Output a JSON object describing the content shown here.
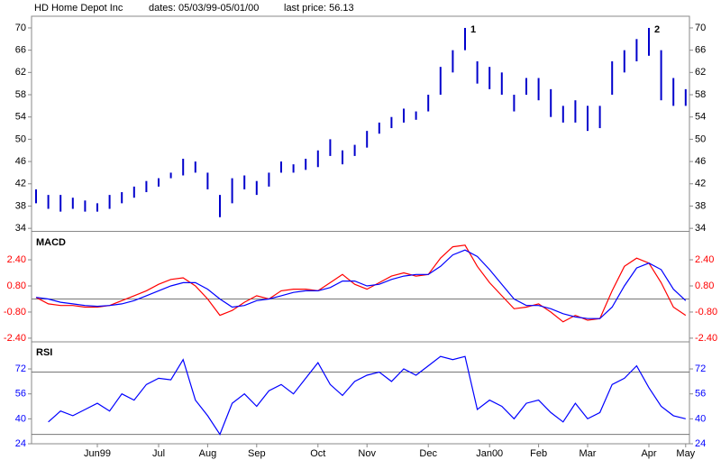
{
  "header": {
    "symbol": "HD Home Depot Inc",
    "dates": "dates: 05/03/99-05/01/00",
    "last": "last price: 56.13"
  },
  "chart_data": [
    {
      "type": "ohlc",
      "color": "#0000cc",
      "high": [
        41,
        40,
        40,
        39.5,
        39,
        38.5,
        40,
        40.5,
        41.5,
        42.5,
        43,
        44,
        46.5,
        46,
        44,
        40,
        43,
        43.5,
        42.5,
        44,
        46,
        45.5,
        46.5,
        48,
        50,
        48,
        49,
        51.5,
        53,
        54,
        55.5,
        55,
        58,
        63,
        66,
        70,
        64,
        63,
        62,
        58,
        61,
        61,
        59,
        56,
        57,
        56,
        56,
        64,
        66,
        68,
        70,
        66,
        61,
        59
      ],
      "low": [
        38.5,
        37.5,
        37,
        37.5,
        37,
        37,
        37.5,
        38.5,
        39.5,
        40.5,
        41.5,
        43,
        43.5,
        44,
        41,
        36,
        38.5,
        41,
        40,
        41.5,
        44,
        44,
        44.5,
        45,
        47,
        45.5,
        47,
        48.5,
        51,
        52,
        53,
        53.5,
        55,
        58,
        62,
        66,
        60,
        59,
        58,
        55,
        58,
        57,
        54,
        53,
        53,
        51.5,
        52,
        58,
        62,
        64,
        65,
        57,
        56,
        56
      ],
      "annotations": [
        {
          "text": "1",
          "at": 35
        },
        {
          "text": "2",
          "at": 50
        }
      ],
      "ylim": [
        33.7,
        72.1
      ],
      "yticks": [
        34,
        38,
        42,
        46,
        50,
        54,
        58,
        62,
        66,
        70
      ]
    },
    {
      "type": "line",
      "title": "MACD",
      "series": [
        {
          "color": "#ff0000",
          "values": [
            0.1,
            -0.3,
            -0.4,
            -0.4,
            -0.5,
            -0.5,
            -0.4,
            -0.1,
            0.2,
            0.5,
            0.9,
            1.2,
            1.3,
            0.8,
            0.0,
            -1.0,
            -0.7,
            -0.2,
            0.2,
            0.0,
            0.5,
            0.6,
            0.6,
            0.5,
            1.0,
            1.5,
            0.9,
            0.6,
            1.0,
            1.4,
            1.6,
            1.4,
            1.5,
            2.5,
            3.2,
            3.3,
            2.0,
            1.0,
            0.2,
            -0.6,
            -0.5,
            -0.3,
            -0.8,
            -1.4,
            -1.0,
            -1.3,
            -1.2,
            0.5,
            2.0,
            2.5,
            2.2,
            1.0,
            -0.5,
            -1.0
          ]
        },
        {
          "color": "#0000ff",
          "values": [
            0.1,
            0,
            -0.2,
            -0.3,
            -0.4,
            -0.45,
            -0.4,
            -0.3,
            -0.1,
            0.2,
            0.5,
            0.8,
            1.0,
            1.0,
            0.6,
            0.0,
            -0.5,
            -0.4,
            -0.1,
            0.0,
            0.2,
            0.4,
            0.5,
            0.5,
            0.7,
            1.1,
            1.1,
            0.8,
            0.9,
            1.2,
            1.4,
            1.5,
            1.5,
            2.0,
            2.7,
            3.0,
            2.6,
            1.8,
            0.9,
            0.0,
            -0.4,
            -0.4,
            -0.6,
            -0.9,
            -1.1,
            -1.2,
            -1.2,
            -0.5,
            0.8,
            1.9,
            2.2,
            1.8,
            0.6,
            -0.1
          ]
        }
      ],
      "hlines": [
        0
      ],
      "tick_color": "#ff0000",
      "ylim": [
        -2.57,
        4.06
      ],
      "yticks": [
        {
          "value": -2.4,
          "label": "-2.40"
        },
        {
          "value": -0.8,
          "label": "-0.80"
        },
        {
          "value": 0.8,
          "label": "0.80"
        },
        {
          "value": 2.4,
          "label": "2.40"
        }
      ]
    },
    {
      "type": "line",
      "title": "RSI",
      "series": [
        {
          "color": "#0000ff",
          "values": [
            null,
            38,
            45,
            42,
            46,
            50,
            45,
            56,
            52,
            62,
            66,
            65,
            78,
            52,
            42,
            30,
            50,
            56,
            48,
            58,
            62,
            56,
            66,
            76,
            62,
            55,
            64,
            68,
            70,
            64,
            72,
            68,
            74,
            80,
            78,
            80,
            46,
            52,
            48,
            40,
            50,
            52,
            44,
            38,
            50,
            40,
            44,
            62,
            66,
            74,
            60,
            48,
            42,
            40
          ]
        }
      ],
      "hlines": [
        70,
        30
      ],
      "tick_color": "#0000ff",
      "ylim": [
        24,
        88.8
      ],
      "yticks": [
        24,
        40,
        56,
        72
      ],
      "categories": [
        null,
        null,
        null,
        null,
        null,
        "Jun99",
        null,
        null,
        null,
        null,
        "Jul",
        null,
        null,
        null,
        "Aug",
        null,
        null,
        null,
        "Sep",
        null,
        null,
        null,
        null,
        "Oct",
        null,
        null,
        null,
        "Nov",
        null,
        null,
        null,
        null,
        "Dec",
        null,
        null,
        null,
        null,
        "Jan00",
        null,
        null,
        null,
        "Feb",
        null,
        null,
        null,
        "Mar",
        null,
        null,
        null,
        null,
        "Apr",
        null,
        null,
        "May"
      ]
    }
  ]
}
